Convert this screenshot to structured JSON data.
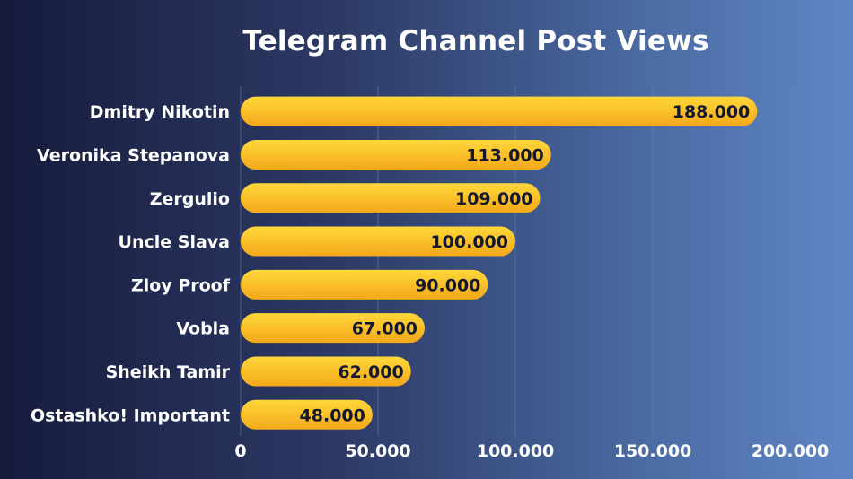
{
  "chart_data": {
    "type": "bar",
    "orientation": "horizontal",
    "title": "Telegram Channel Post Views",
    "categories": [
      "Dmitry Nikotin",
      "Veronika Stepanova",
      "Zergulio",
      "Uncle Slava",
      "Zloy Proof",
      "Vobla",
      "Sheikh Tamir",
      "Ostashko! Important"
    ],
    "values": [
      188000,
      113000,
      109000,
      100000,
      90000,
      67000,
      62000,
      48000
    ],
    "value_labels": [
      "188.000",
      "113.000",
      "109.000",
      "100.000",
      "90.000",
      "67.000",
      "62.000",
      "48.000"
    ],
    "xlim": [
      0,
      200000
    ],
    "xticks": [
      0,
      50000,
      100000,
      150000,
      200000
    ],
    "xtick_labels": [
      "0",
      "50.000",
      "100.000",
      "150.000",
      "200.000"
    ],
    "grid": true,
    "colors": {
      "bar_top": "#ffd83a",
      "bar_bottom": "#f3a81a",
      "grid": "#6f85b8"
    }
  }
}
